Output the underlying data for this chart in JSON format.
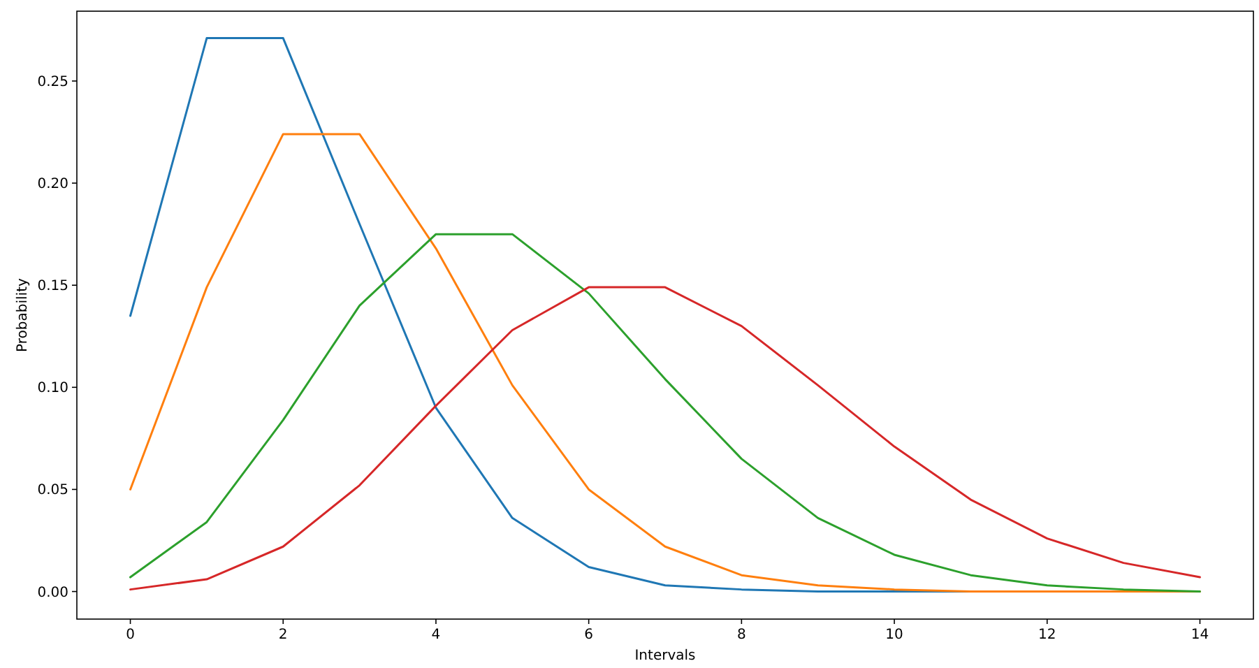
{
  "chart_data": {
    "type": "line",
    "xlabel": "Intervals",
    "ylabel": "Probability",
    "x": [
      0,
      1,
      2,
      3,
      4,
      5,
      6,
      7,
      8,
      9,
      10,
      11,
      12,
      13,
      14
    ],
    "xlim": [
      -0.7,
      14.7
    ],
    "xticks": [
      0,
      2,
      4,
      6,
      8,
      10,
      12,
      14
    ],
    "ylim": [
      -0.0135,
      0.2842
    ],
    "yticks": [
      {
        "value": 0,
        "label": "0.00"
      },
      {
        "value": 0.05,
        "label": "0.05"
      },
      {
        "value": 0.1,
        "label": "0.10"
      },
      {
        "value": 0.15,
        "label": "0.15"
      },
      {
        "value": 0.2,
        "label": "0.20"
      },
      {
        "value": 0.25,
        "label": "0.25"
      }
    ],
    "grid": false,
    "series": [
      {
        "color": "#1f77b4",
        "values": [
          0.135,
          0.271,
          0.271,
          0.18,
          0.09,
          0.036,
          0.012,
          0.003,
          0.001,
          0.0,
          0.0,
          0.0,
          0.0,
          null,
          null
        ]
      },
      {
        "color": "#ff7f0e",
        "values": [
          0.05,
          0.149,
          0.224,
          0.224,
          0.168,
          0.101,
          0.05,
          0.022,
          0.008,
          0.003,
          0.001,
          0.0,
          0.0,
          0.0,
          0.0
        ]
      },
      {
        "color": "#2ca02c",
        "values": [
          0.007,
          0.034,
          0.084,
          0.14,
          0.175,
          0.175,
          0.146,
          0.104,
          0.065,
          0.036,
          0.018,
          0.008,
          0.003,
          0.001,
          0.0
        ]
      },
      {
        "color": "#d62728",
        "values": [
          0.001,
          0.006,
          0.022,
          0.052,
          0.091,
          0.128,
          0.149,
          0.149,
          0.13,
          0.101,
          0.071,
          0.045,
          0.026,
          0.014,
          0.007
        ]
      }
    ]
  }
}
